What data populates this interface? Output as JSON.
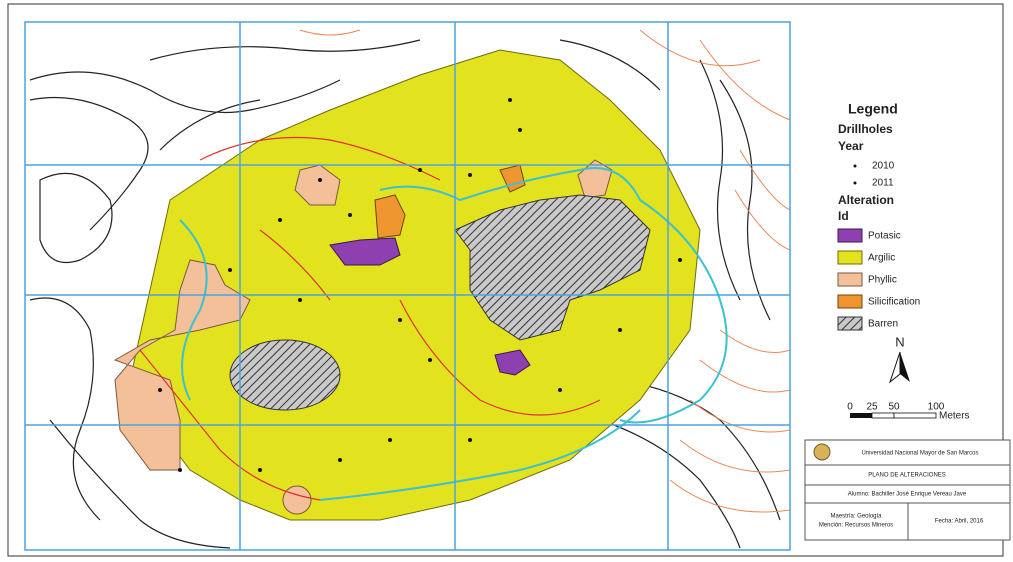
{
  "legend": {
    "title": "Legend",
    "drillholes": "Drillholes",
    "year": "Year",
    "years": [
      "2010",
      "2011"
    ],
    "alteration": "Alteration",
    "id": "Id",
    "items": [
      "Potasic",
      "Argilic",
      "Phyllic",
      "Silicification",
      "Barren"
    ]
  },
  "north": "N",
  "scale": {
    "ticks": [
      "0",
      "25",
      "50",
      "100"
    ],
    "unit": "Meters"
  },
  "title_block": {
    "university": "Universidad Nacional Mayor de San Marcos",
    "title": "PLANO DE ALTERACIONES",
    "author": "Alumno: Bachiller José Enrique Vereau Jave",
    "program": [
      "Maestría: Geología",
      "Mención: Recursos Mineros"
    ],
    "date": "Fecha: Abril, 2016"
  }
}
